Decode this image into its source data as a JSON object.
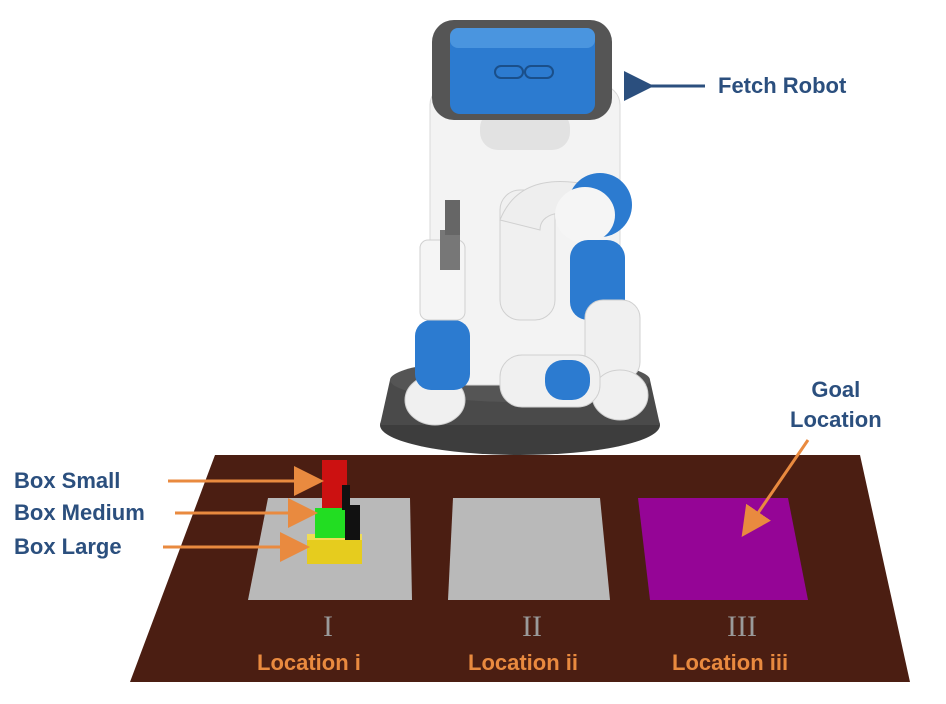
{
  "labels": {
    "fetch_robot": "Fetch Robot",
    "box_small": "Box Small",
    "box_medium": "Box Medium",
    "box_large": "Box Large",
    "goal_location": "Goal\nLocation"
  },
  "locations": [
    {
      "numeral": "I",
      "label": "Location i"
    },
    {
      "numeral": "II",
      "label": "Location ii"
    },
    {
      "numeral": "III",
      "label": "Location iii"
    }
  ],
  "colors": {
    "table": "#4b1e12",
    "pad_gray": "#b9b9b9",
    "pad_goal": "#950596",
    "box_small": "#cc1111",
    "box_medium": "#22dd22",
    "box_large": "#e6cc1e",
    "robot_blue": "#2c7bd0",
    "robot_white": "#f2f2f2",
    "robot_base": "#444444",
    "label_blue": "#2b4f7e",
    "label_orange": "#e98a3f"
  }
}
